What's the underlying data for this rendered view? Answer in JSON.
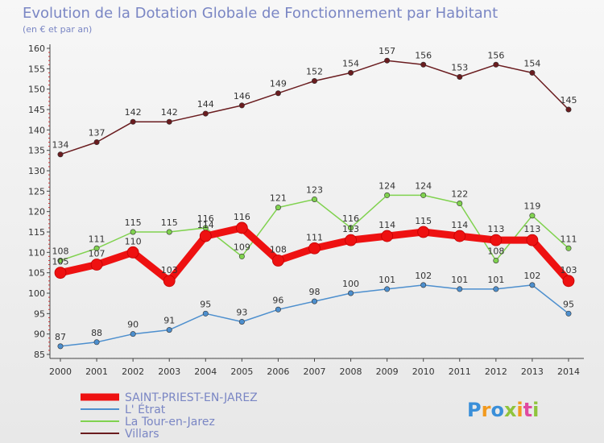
{
  "chart_data": {
    "type": "line",
    "title": "Evolution de la Dotation Globale de Fonctionnement par Habitant",
    "subtitle": "(en € et par an)",
    "x": [
      "2000",
      "2001",
      "2002",
      "2003",
      "2004",
      "2005",
      "2006",
      "2007",
      "2008",
      "2009",
      "2010",
      "2011",
      "2012",
      "2013",
      "2014"
    ],
    "ylim": [
      85,
      160
    ],
    "yticks": [
      85,
      90,
      95,
      100,
      105,
      110,
      115,
      120,
      125,
      130,
      135,
      140,
      145,
      150,
      155,
      160
    ],
    "grid": false,
    "legend_position": "bottom-left",
    "series": [
      {
        "name": "SAINT-PRIEST-EN-JAREZ",
        "color": "#ee1111",
        "emphasis": true,
        "values": [
          105,
          107,
          110,
          103,
          114,
          116,
          108,
          111,
          113,
          114,
          115,
          114,
          113,
          113,
          103
        ]
      },
      {
        "name": "L' Étrat",
        "color": "#4d8fce",
        "values": [
          87,
          88,
          90,
          91,
          95,
          93,
          96,
          98,
          100,
          101,
          102,
          101,
          101,
          102,
          95
        ]
      },
      {
        "name": "La Tour-en-Jarez",
        "color": "#80d24f",
        "values": [
          108,
          111,
          115,
          115,
          116,
          109,
          121,
          123,
          116,
          124,
          124,
          122,
          108,
          119,
          111
        ]
      },
      {
        "name": "Villars",
        "color": "#6a1c1f",
        "values": [
          134,
          137,
          142,
          142,
          144,
          146,
          149,
          152,
          154,
          157,
          156,
          153,
          156,
          154,
          145
        ]
      }
    ]
  },
  "brand": {
    "text": "Proxiti",
    "letter_colors": [
      "#3a8fd9",
      "#f29a1f",
      "#3a8fd9",
      "#8fc43c",
      "#f29a1f",
      "#e04aa0",
      "#8fc43c"
    ]
  }
}
